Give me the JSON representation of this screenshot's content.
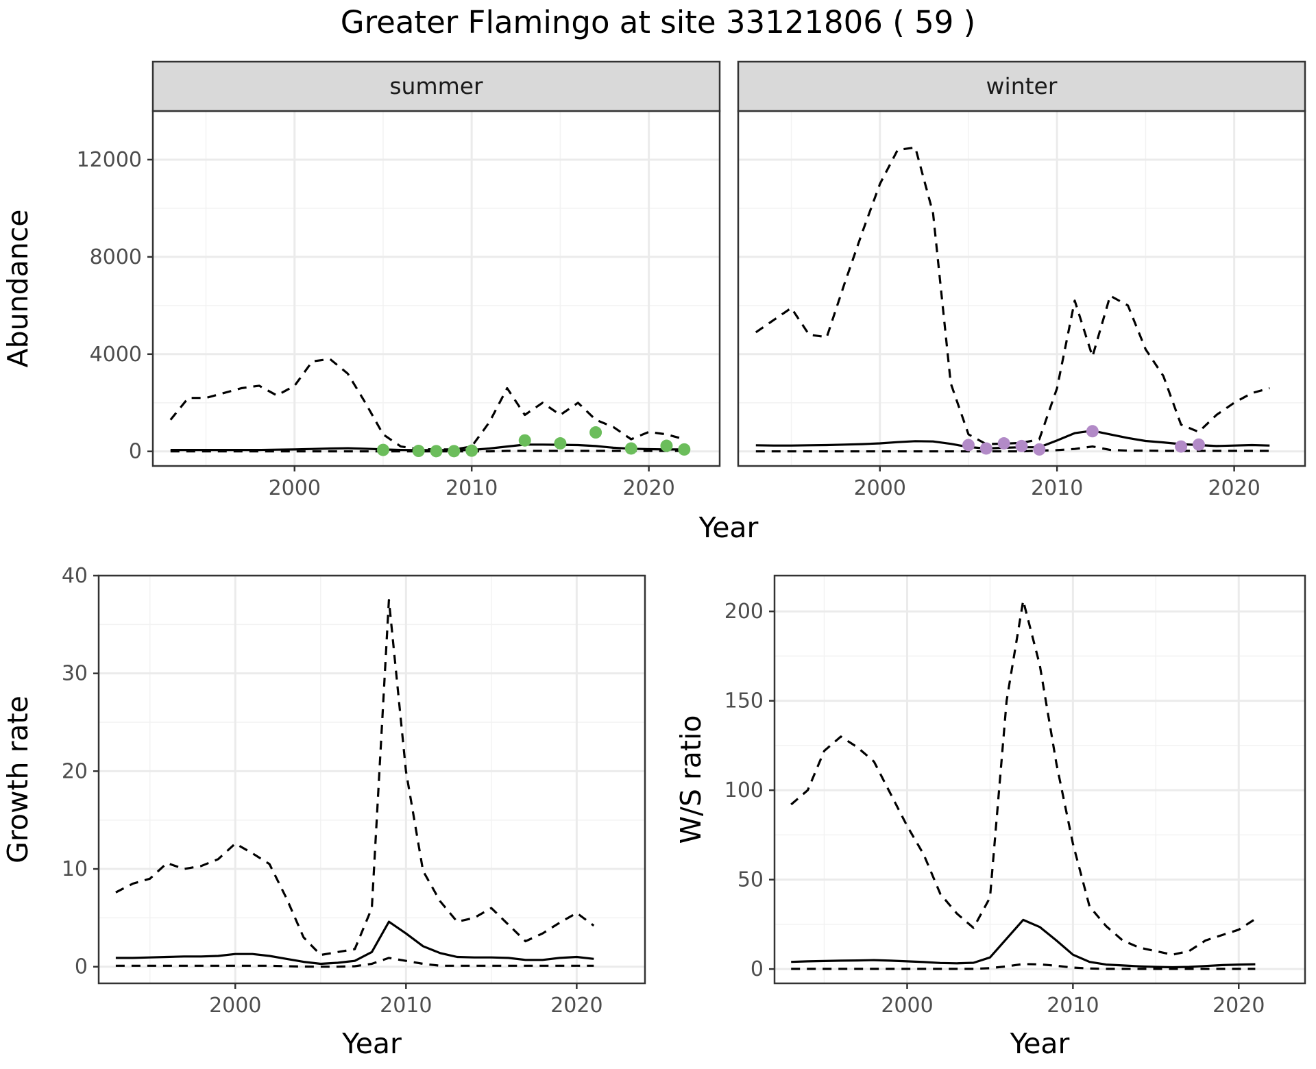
{
  "title": "Greater Flamingo at site 33121806 ( 59 )",
  "colors": {
    "summer_points": "#6bbd5b",
    "winter_points": "#b28ac7"
  },
  "chart_data": [
    {
      "type": "line",
      "panel": "summer",
      "strip": "summer",
      "ylabel": "Abundance",
      "xlabel": "Year",
      "xlim": [
        1992,
        2024
      ],
      "ylim": [
        -600,
        14000
      ],
      "xticks": [
        2000,
        2010,
        2020
      ],
      "yticks": [
        0,
        4000,
        8000,
        12000
      ],
      "grid": true,
      "x": [
        1993,
        1994,
        1995,
        1996,
        1997,
        1998,
        1999,
        2000,
        2001,
        2002,
        2003,
        2004,
        2005,
        2006,
        2007,
        2008,
        2009,
        2010,
        2011,
        2012,
        2013,
        2014,
        2015,
        2016,
        2017,
        2018,
        2019,
        2020,
        2021,
        2022
      ],
      "series": [
        {
          "style": "solid",
          "values": [
            60,
            60,
            60,
            60,
            60,
            60,
            70,
            80,
            100,
            120,
            130,
            110,
            80,
            60,
            50,
            50,
            50,
            60,
            120,
            200,
            280,
            280,
            270,
            260,
            220,
            150,
            110,
            90,
            80,
            80
          ]
        },
        {
          "style": "dashed",
          "values": [
            1300,
            2200,
            2200,
            2400,
            2600,
            2700,
            2300,
            2700,
            3700,
            3800,
            3200,
            2000,
            700,
            200,
            100,
            80,
            80,
            200,
            1200,
            2600,
            1500,
            2000,
            1500,
            2000,
            1300,
            1000,
            500,
            800,
            700,
            500
          ]
        },
        {
          "style": "dashed",
          "values": [
            0,
            0,
            0,
            0,
            0,
            0,
            0,
            0,
            0,
            0,
            0,
            0,
            0,
            0,
            0,
            0,
            0,
            0,
            0,
            20,
            20,
            20,
            20,
            20,
            20,
            20,
            20,
            20,
            20,
            20
          ]
        }
      ],
      "points": {
        "x": [
          2005,
          2007,
          2008,
          2009,
          2010,
          2013,
          2015,
          2017,
          2019,
          2021,
          2022
        ],
        "y": [
          60,
          20,
          10,
          10,
          30,
          450,
          330,
          780,
          120,
          230,
          80
        ]
      }
    },
    {
      "type": "line",
      "panel": "winter",
      "strip": "winter",
      "xlabel": "Year",
      "xlim": [
        1992,
        2024
      ],
      "ylim": [
        -600,
        14000
      ],
      "xticks": [
        2000,
        2010,
        2020
      ],
      "yticks": [
        0,
        4000,
        8000,
        12000
      ],
      "grid": true,
      "x": [
        1993,
        1994,
        1995,
        1996,
        1997,
        1998,
        1999,
        2000,
        2001,
        2002,
        2003,
        2004,
        2005,
        2006,
        2007,
        2008,
        2009,
        2010,
        2011,
        2012,
        2013,
        2014,
        2015,
        2016,
        2017,
        2018,
        2019,
        2020,
        2021,
        2022
      ],
      "series": [
        {
          "style": "solid",
          "values": [
            250,
            240,
            240,
            250,
            260,
            280,
            300,
            330,
            380,
            420,
            410,
            310,
            180,
            120,
            150,
            170,
            170,
            450,
            750,
            850,
            700,
            550,
            430,
            370,
            300,
            260,
            220,
            240,
            260,
            240
          ]
        },
        {
          "style": "dashed",
          "values": [
            4900,
            5400,
            5900,
            4800,
            4700,
            6900,
            9000,
            11000,
            12400,
            12500,
            9800,
            2800,
            700,
            300,
            320,
            350,
            500,
            2600,
            6200,
            3900,
            6400,
            6000,
            4200,
            3100,
            1100,
            800,
            1500,
            2000,
            2400,
            2600
          ]
        },
        {
          "style": "dashed",
          "values": [
            0,
            0,
            0,
            0,
            0,
            0,
            0,
            0,
            0,
            0,
            0,
            0,
            0,
            0,
            0,
            0,
            30,
            50,
            100,
            200,
            60,
            30,
            30,
            20,
            20,
            20,
            20,
            20,
            20,
            20
          ]
        }
      ],
      "points": {
        "x": [
          2005,
          2006,
          2007,
          2008,
          2009,
          2012,
          2017,
          2018
        ],
        "y": [
          260,
          120,
          330,
          220,
          80,
          830,
          200,
          280
        ]
      }
    },
    {
      "type": "line",
      "panel": "growth",
      "ylabel": "Growth rate",
      "xlabel": "Year",
      "xlim": [
        1992,
        2024
      ],
      "ylim": [
        -1.7,
        40
      ],
      "xticks": [
        2000,
        2010,
        2020
      ],
      "yticks": [
        0,
        10,
        20,
        30,
        40
      ],
      "grid": true,
      "x": [
        1993,
        1994,
        1995,
        1996,
        1997,
        1998,
        1999,
        2000,
        2001,
        2002,
        2003,
        2004,
        2005,
        2006,
        2007,
        2008,
        2009,
        2010,
        2011,
        2012,
        2013,
        2014,
        2015,
        2016,
        2017,
        2018,
        2019,
        2020,
        2021
      ],
      "series": [
        {
          "style": "solid",
          "values": [
            0.9,
            0.9,
            0.95,
            1.0,
            1.05,
            1.05,
            1.1,
            1.3,
            1.3,
            1.1,
            0.8,
            0.5,
            0.3,
            0.4,
            0.6,
            1.5,
            4.6,
            3.4,
            2.1,
            1.4,
            1.0,
            0.95,
            0.95,
            0.9,
            0.7,
            0.7,
            0.9,
            1.0,
            0.8
          ]
        },
        {
          "style": "dashed",
          "values": [
            7.6,
            8.5,
            9.0,
            10.6,
            10.0,
            10.3,
            11.0,
            12.6,
            11.6,
            10.5,
            7.0,
            3.0,
            1.2,
            1.5,
            1.8,
            6.0,
            37.5,
            20.0,
            9.8,
            6.7,
            4.6,
            5.0,
            6.0,
            4.3,
            2.6,
            3.4,
            4.5,
            5.5,
            4.2
          ]
        },
        {
          "style": "dashed",
          "values": [
            0.1,
            0.1,
            0.1,
            0.1,
            0.1,
            0.1,
            0.1,
            0.1,
            0.1,
            0.1,
            0.05,
            0.02,
            0.0,
            0.0,
            0.05,
            0.3,
            0.9,
            0.6,
            0.3,
            0.1,
            0.1,
            0.1,
            0.1,
            0.1,
            0.1,
            0.1,
            0.1,
            0.1,
            0.1
          ]
        }
      ]
    },
    {
      "type": "line",
      "panel": "ratio",
      "ylabel": "W/S ratio",
      "xlabel": "Year",
      "xlim": [
        1992,
        2024
      ],
      "ylim": [
        -8,
        220
      ],
      "xticks": [
        2000,
        2010,
        2020
      ],
      "yticks": [
        0,
        50,
        100,
        150,
        200
      ],
      "grid": true,
      "x": [
        1993,
        1994,
        1995,
        1996,
        1997,
        1998,
        1999,
        2000,
        2001,
        2002,
        2003,
        2004,
        2005,
        2006,
        2007,
        2008,
        2009,
        2010,
        2011,
        2012,
        2013,
        2014,
        2015,
        2016,
        2017,
        2018,
        2019,
        2020,
        2021
      ],
      "series": [
        {
          "style": "solid",
          "values": [
            4,
            4.3,
            4.5,
            4.7,
            4.8,
            5.0,
            4.7,
            4.3,
            3.9,
            3.4,
            3.2,
            3.5,
            6.5,
            17,
            27.5,
            23.5,
            16,
            8,
            4,
            2.5,
            2,
            1.5,
            1.2,
            1,
            1.2,
            1.7,
            2.2,
            2.5,
            2.7
          ]
        },
        {
          "style": "dashed",
          "values": [
            92,
            100,
            122,
            130,
            124,
            116,
            98,
            80,
            64,
            42,
            31,
            23,
            40,
            150,
            206,
            170,
            115,
            70,
            35,
            24,
            16,
            12,
            10,
            8,
            10,
            16,
            19,
            22,
            28
          ]
        },
        {
          "style": "dashed",
          "values": [
            0.1,
            0.1,
            0.1,
            0.1,
            0.1,
            0.1,
            0.1,
            0.1,
            0.1,
            0.1,
            0.1,
            0.1,
            0.5,
            1.5,
            2.8,
            2.6,
            1.8,
            0.8,
            0.3,
            0.1,
            0.1,
            0.1,
            0.1,
            0.1,
            0.1,
            0.1,
            0.1,
            0.1,
            0.1
          ]
        }
      ]
    }
  ]
}
